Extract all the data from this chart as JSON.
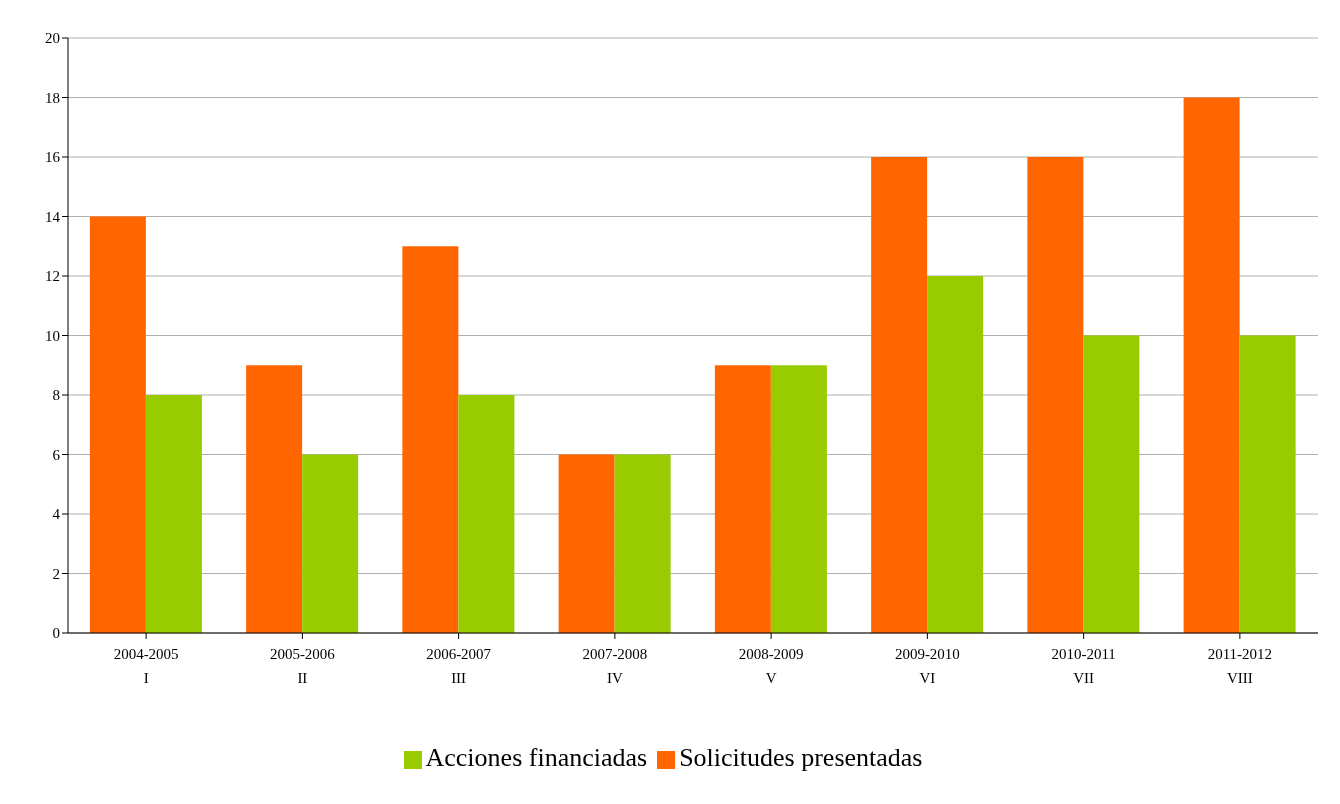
{
  "chart_data": {
    "type": "bar",
    "categories": [
      "2004-2005\nI",
      "2005-2006\nII",
      "2006-2007\nIII",
      "2007-2008\nIV",
      "2008-2009\nV",
      "2009-2010\nVI",
      "2010-2011\nVII",
      "2011-2012\nVIII"
    ],
    "series": [
      {
        "name": "Solicitudes presentadas",
        "color": "#ff6600",
        "values": [
          14,
          9,
          13,
          6,
          9,
          16,
          16,
          18
        ]
      },
      {
        "name": "Acciones financiadas",
        "color": "#99cc00",
        "values": [
          8,
          6,
          8,
          6,
          9,
          12,
          10,
          10
        ]
      }
    ],
    "ylim": [
      0,
      20
    ],
    "yticks": [
      0,
      2,
      4,
      6,
      8,
      10,
      12,
      14,
      16,
      18,
      20
    ],
    "grid": "y",
    "legend": "bottom"
  }
}
